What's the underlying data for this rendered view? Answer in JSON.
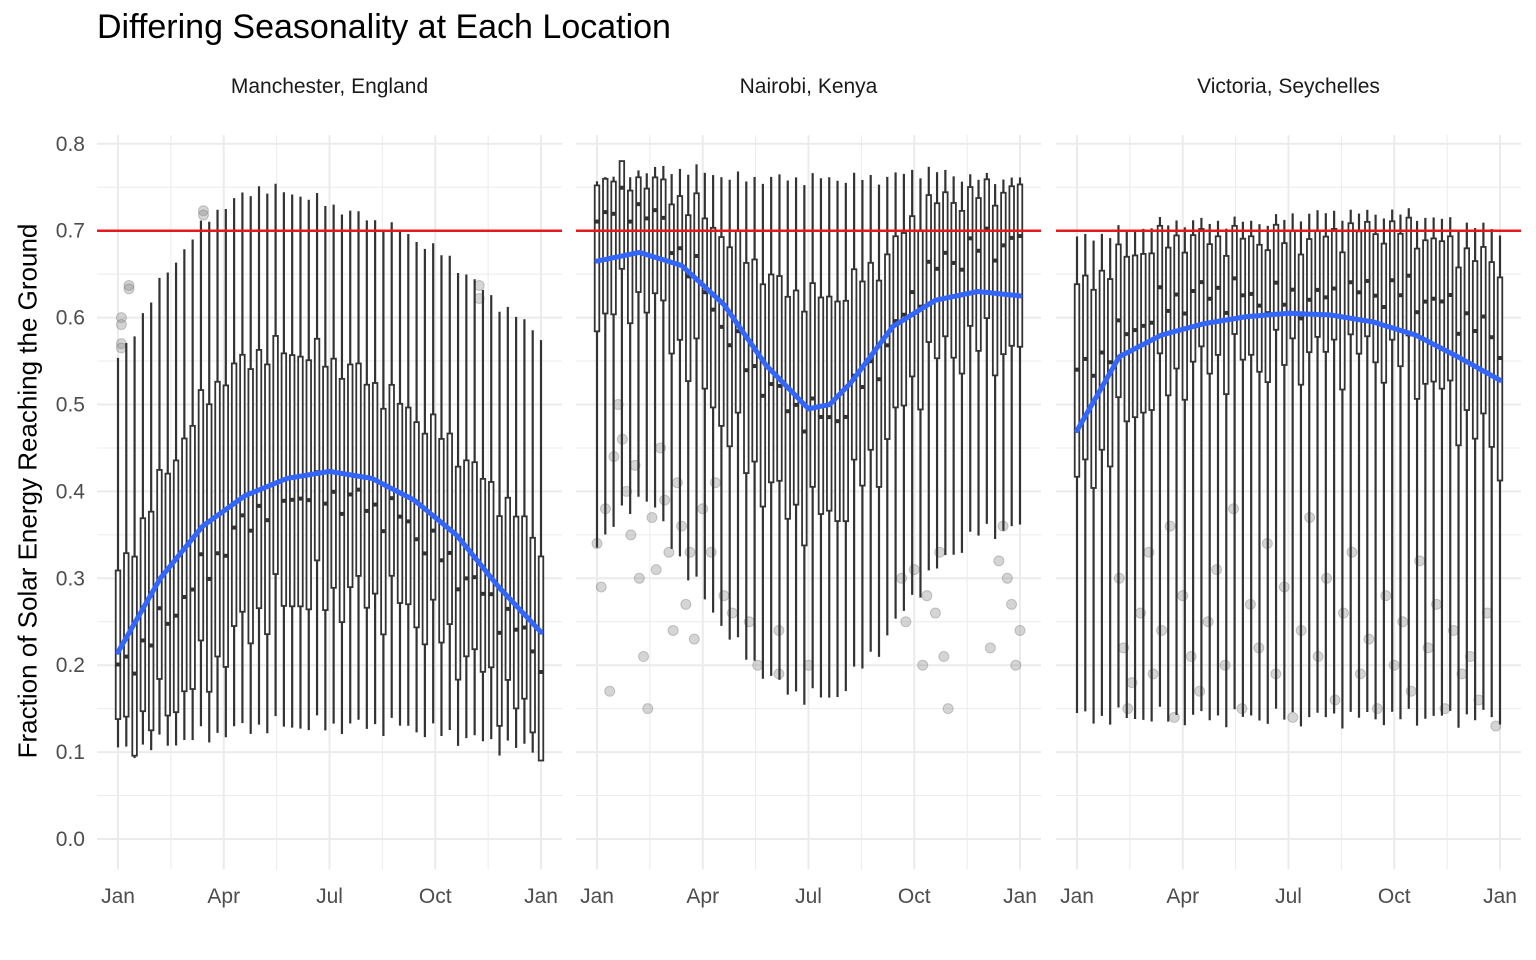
{
  "chart_title": "Differing Seasonality at Each Location",
  "chart_data": {
    "type": "boxplot",
    "title": "Differing Seasonality at Each Location",
    "ylabel": "Fraction of Solar Energy Reaching the Ground",
    "xlabel": "",
    "ylim": [
      0.0,
      0.8
    ],
    "y_ticks": [
      "0.0",
      "0.1",
      "0.2",
      "0.3",
      "0.4",
      "0.5",
      "0.6",
      "0.7",
      "0.8"
    ],
    "x_ticks": [
      "Jan",
      "Apr",
      "Jul",
      "Oct",
      "Jan"
    ],
    "grid": true,
    "reference_line": {
      "y": 0.7,
      "color": "#e41a1c"
    },
    "colors": {
      "box": "#333333",
      "smooth": "#3366ff",
      "outlier": "#888888",
      "grid": "#ebebeb"
    },
    "facets": [
      {
        "name": "Manchester, England",
        "box_params": {
          "median": [
            0.19,
            0.25,
            0.32,
            0.38,
            0.4,
            0.39,
            0.37,
            0.32,
            0.27,
            0.21
          ],
          "q1": [
            0.12,
            0.15,
            0.2,
            0.26,
            0.28,
            0.28,
            0.27,
            0.23,
            0.18,
            0.12
          ],
          "q3": [
            0.3,
            0.42,
            0.52,
            0.56,
            0.56,
            0.54,
            0.5,
            0.46,
            0.4,
            0.34
          ],
          "lower": [
            0.1,
            0.11,
            0.12,
            0.13,
            0.13,
            0.13,
            0.13,
            0.12,
            0.11,
            0.1
          ],
          "upper": [
            0.55,
            0.65,
            0.72,
            0.75,
            0.74,
            0.72,
            0.7,
            0.67,
            0.62,
            0.58
          ]
        },
        "smooth": {
          "x": [
            0,
            0.1,
            0.2,
            0.3,
            0.4,
            0.5,
            0.6,
            0.7,
            0.8,
            0.9,
            1.0
          ],
          "y": [
            0.215,
            0.3,
            0.36,
            0.395,
            0.415,
            0.423,
            0.415,
            0.39,
            0.35,
            0.29,
            0.238
          ]
        },
        "outliers": [
          {
            "x": 0.008,
            "y": 0.6
          },
          {
            "x": 0.008,
            "y": 0.592
          },
          {
            "x": 0.008,
            "y": 0.57
          },
          {
            "x": 0.008,
            "y": 0.565
          },
          {
            "x": 0.026,
            "y": 0.637
          },
          {
            "x": 0.026,
            "y": 0.633
          },
          {
            "x": 0.202,
            "y": 0.723
          },
          {
            "x": 0.202,
            "y": 0.718
          },
          {
            "x": 0.854,
            "y": 0.637
          },
          {
            "x": 0.854,
            "y": 0.622
          }
        ]
      },
      {
        "name": "Nairobi, Kenya",
        "box_params": {
          "median": [
            0.72,
            0.73,
            0.66,
            0.56,
            0.5,
            0.48,
            0.55,
            0.65,
            0.68,
            0.69
          ],
          "q1": [
            0.6,
            0.63,
            0.55,
            0.45,
            0.38,
            0.37,
            0.44,
            0.55,
            0.57,
            0.56
          ],
          "q3": [
            0.76,
            0.76,
            0.73,
            0.68,
            0.63,
            0.62,
            0.66,
            0.73,
            0.74,
            0.75
          ],
          "lower": [
            0.34,
            0.4,
            0.3,
            0.22,
            0.17,
            0.16,
            0.22,
            0.3,
            0.35,
            0.36
          ],
          "upper": [
            0.76,
            0.77,
            0.77,
            0.76,
            0.76,
            0.76,
            0.76,
            0.77,
            0.76,
            0.76
          ]
        },
        "smooth": {
          "x": [
            0,
            0.1,
            0.2,
            0.3,
            0.4,
            0.5,
            0.55,
            0.6,
            0.7,
            0.8,
            0.9,
            1.0
          ],
          "y": [
            0.665,
            0.675,
            0.66,
            0.615,
            0.545,
            0.495,
            0.5,
            0.525,
            0.59,
            0.62,
            0.63,
            0.625
          ]
        },
        "outliers": [
          {
            "x": 0.0,
            "y": 0.34
          },
          {
            "x": 0.01,
            "y": 0.29
          },
          {
            "x": 0.02,
            "y": 0.38
          },
          {
            "x": 0.03,
            "y": 0.17
          },
          {
            "x": 0.04,
            "y": 0.44
          },
          {
            "x": 0.05,
            "y": 0.5
          },
          {
            "x": 0.06,
            "y": 0.46
          },
          {
            "x": 0.07,
            "y": 0.4
          },
          {
            "x": 0.08,
            "y": 0.35
          },
          {
            "x": 0.09,
            "y": 0.43
          },
          {
            "x": 0.1,
            "y": 0.3
          },
          {
            "x": 0.11,
            "y": 0.21
          },
          {
            "x": 0.12,
            "y": 0.15
          },
          {
            "x": 0.13,
            "y": 0.37
          },
          {
            "x": 0.14,
            "y": 0.31
          },
          {
            "x": 0.15,
            "y": 0.45
          },
          {
            "x": 0.16,
            "y": 0.39
          },
          {
            "x": 0.17,
            "y": 0.33
          },
          {
            "x": 0.18,
            "y": 0.24
          },
          {
            "x": 0.19,
            "y": 0.41
          },
          {
            "x": 0.2,
            "y": 0.36
          },
          {
            "x": 0.21,
            "y": 0.27
          },
          {
            "x": 0.22,
            "y": 0.33
          },
          {
            "x": 0.23,
            "y": 0.23
          },
          {
            "x": 0.25,
            "y": 0.38
          },
          {
            "x": 0.27,
            "y": 0.33
          },
          {
            "x": 0.28,
            "y": 0.41
          },
          {
            "x": 0.3,
            "y": 0.28
          },
          {
            "x": 0.32,
            "y": 0.26
          },
          {
            "x": 0.36,
            "y": 0.25
          },
          {
            "x": 0.38,
            "y": 0.2
          },
          {
            "x": 0.43,
            "y": 0.24
          },
          {
            "x": 0.43,
            "y": 0.19
          },
          {
            "x": 0.5,
            "y": 0.2
          },
          {
            "x": 0.72,
            "y": 0.3
          },
          {
            "x": 0.73,
            "y": 0.25
          },
          {
            "x": 0.75,
            "y": 0.31
          },
          {
            "x": 0.77,
            "y": 0.2
          },
          {
            "x": 0.78,
            "y": 0.28
          },
          {
            "x": 0.8,
            "y": 0.26
          },
          {
            "x": 0.81,
            "y": 0.33
          },
          {
            "x": 0.82,
            "y": 0.21
          },
          {
            "x": 0.83,
            "y": 0.15
          },
          {
            "x": 0.93,
            "y": 0.22
          },
          {
            "x": 0.95,
            "y": 0.32
          },
          {
            "x": 0.96,
            "y": 0.36
          },
          {
            "x": 0.97,
            "y": 0.3
          },
          {
            "x": 0.98,
            "y": 0.27
          },
          {
            "x": 0.99,
            "y": 0.2
          },
          {
            "x": 1.0,
            "y": 0.24
          }
        ]
      },
      {
        "name": "Victoria, Seychelles",
        "box_params": {
          "median": [
            0.53,
            0.58,
            0.62,
            0.63,
            0.62,
            0.62,
            0.63,
            0.63,
            0.61,
            0.57
          ],
          "q1": [
            0.4,
            0.48,
            0.53,
            0.55,
            0.55,
            0.56,
            0.56,
            0.55,
            0.5,
            0.44
          ],
          "q3": [
            0.63,
            0.67,
            0.69,
            0.69,
            0.69,
            0.69,
            0.7,
            0.7,
            0.68,
            0.66
          ],
          "lower": [
            0.14,
            0.14,
            0.14,
            0.14,
            0.14,
            0.14,
            0.14,
            0.14,
            0.14,
            0.14
          ],
          "upper": [
            0.69,
            0.7,
            0.71,
            0.71,
            0.71,
            0.72,
            0.72,
            0.72,
            0.71,
            0.7
          ]
        },
        "smooth": {
          "x": [
            0,
            0.1,
            0.2,
            0.3,
            0.4,
            0.5,
            0.6,
            0.7,
            0.8,
            0.9,
            1.0
          ],
          "y": [
            0.47,
            0.555,
            0.58,
            0.593,
            0.601,
            0.605,
            0.603,
            0.595,
            0.58,
            0.555,
            0.528
          ]
        },
        "outliers": [
          {
            "x": 0.1,
            "y": 0.3
          },
          {
            "x": 0.11,
            "y": 0.22
          },
          {
            "x": 0.12,
            "y": 0.15
          },
          {
            "x": 0.13,
            "y": 0.18
          },
          {
            "x": 0.15,
            "y": 0.26
          },
          {
            "x": 0.17,
            "y": 0.33
          },
          {
            "x": 0.18,
            "y": 0.19
          },
          {
            "x": 0.2,
            "y": 0.24
          },
          {
            "x": 0.22,
            "y": 0.36
          },
          {
            "x": 0.23,
            "y": 0.14
          },
          {
            "x": 0.25,
            "y": 0.28
          },
          {
            "x": 0.27,
            "y": 0.21
          },
          {
            "x": 0.29,
            "y": 0.17
          },
          {
            "x": 0.31,
            "y": 0.25
          },
          {
            "x": 0.33,
            "y": 0.31
          },
          {
            "x": 0.35,
            "y": 0.2
          },
          {
            "x": 0.37,
            "y": 0.38
          },
          {
            "x": 0.39,
            "y": 0.15
          },
          {
            "x": 0.41,
            "y": 0.27
          },
          {
            "x": 0.43,
            "y": 0.22
          },
          {
            "x": 0.45,
            "y": 0.34
          },
          {
            "x": 0.47,
            "y": 0.19
          },
          {
            "x": 0.49,
            "y": 0.29
          },
          {
            "x": 0.51,
            "y": 0.14
          },
          {
            "x": 0.53,
            "y": 0.24
          },
          {
            "x": 0.55,
            "y": 0.37
          },
          {
            "x": 0.57,
            "y": 0.21
          },
          {
            "x": 0.59,
            "y": 0.3
          },
          {
            "x": 0.61,
            "y": 0.16
          },
          {
            "x": 0.63,
            "y": 0.26
          },
          {
            "x": 0.65,
            "y": 0.33
          },
          {
            "x": 0.67,
            "y": 0.19
          },
          {
            "x": 0.69,
            "y": 0.23
          },
          {
            "x": 0.71,
            "y": 0.15
          },
          {
            "x": 0.73,
            "y": 0.28
          },
          {
            "x": 0.75,
            "y": 0.2
          },
          {
            "x": 0.77,
            "y": 0.25
          },
          {
            "x": 0.79,
            "y": 0.17
          },
          {
            "x": 0.81,
            "y": 0.32
          },
          {
            "x": 0.83,
            "y": 0.22
          },
          {
            "x": 0.85,
            "y": 0.27
          },
          {
            "x": 0.87,
            "y": 0.15
          },
          {
            "x": 0.89,
            "y": 0.24
          },
          {
            "x": 0.91,
            "y": 0.19
          },
          {
            "x": 0.93,
            "y": 0.21
          },
          {
            "x": 0.95,
            "y": 0.16
          },
          {
            "x": 0.97,
            "y": 0.26
          },
          {
            "x": 0.99,
            "y": 0.13
          }
        ]
      }
    ]
  }
}
